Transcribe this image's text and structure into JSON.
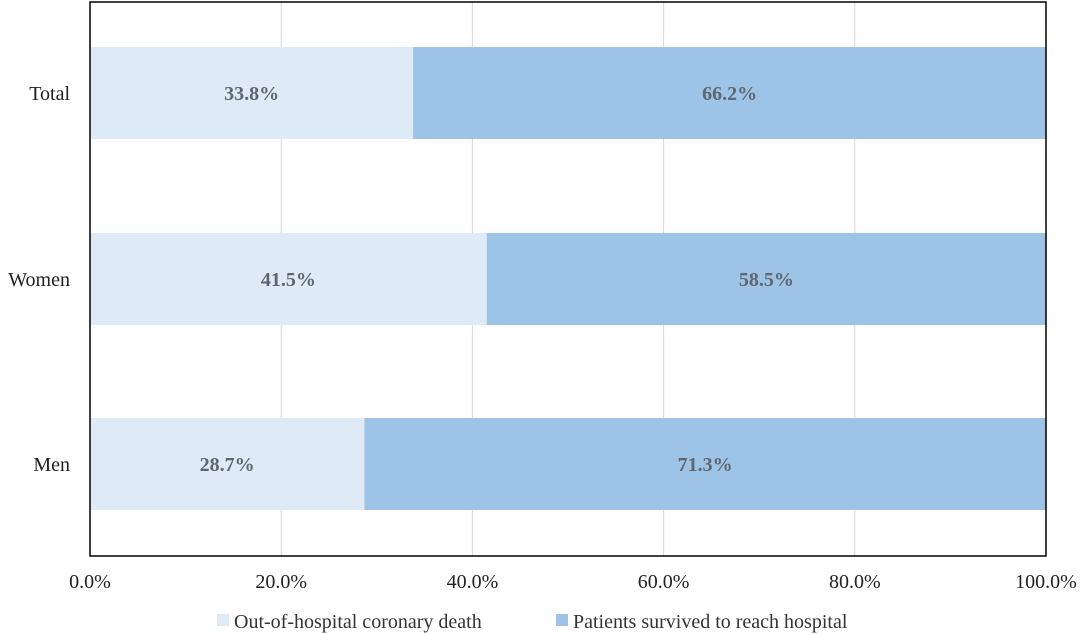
{
  "chart_data": {
    "type": "bar",
    "orientation": "horizontal",
    "stacked": true,
    "categories": [
      "Total",
      "Women",
      "Men"
    ],
    "series": [
      {
        "name": "Out-of-hospital coronary death",
        "values": [
          33.8,
          41.5,
          28.7
        ],
        "labels": [
          "33.8%",
          "41.5%",
          "28.7%"
        ],
        "color": "#deeaf6"
      },
      {
        "name": "Patients survived to reach hospital",
        "values": [
          66.2,
          58.5,
          71.3
        ],
        "labels": [
          "66.2%",
          "58.5%",
          "71.3%"
        ],
        "color": "#9dc3e6"
      }
    ],
    "xlim": [
      0,
      100
    ],
    "xticks": [
      "0.0%",
      "20.0%",
      "40.0%",
      "60.0%",
      "80.0%",
      "100.0%"
    ],
    "grid": true,
    "legend_position": "bottom",
    "title": "",
    "xlabel": "",
    "ylabel": ""
  }
}
